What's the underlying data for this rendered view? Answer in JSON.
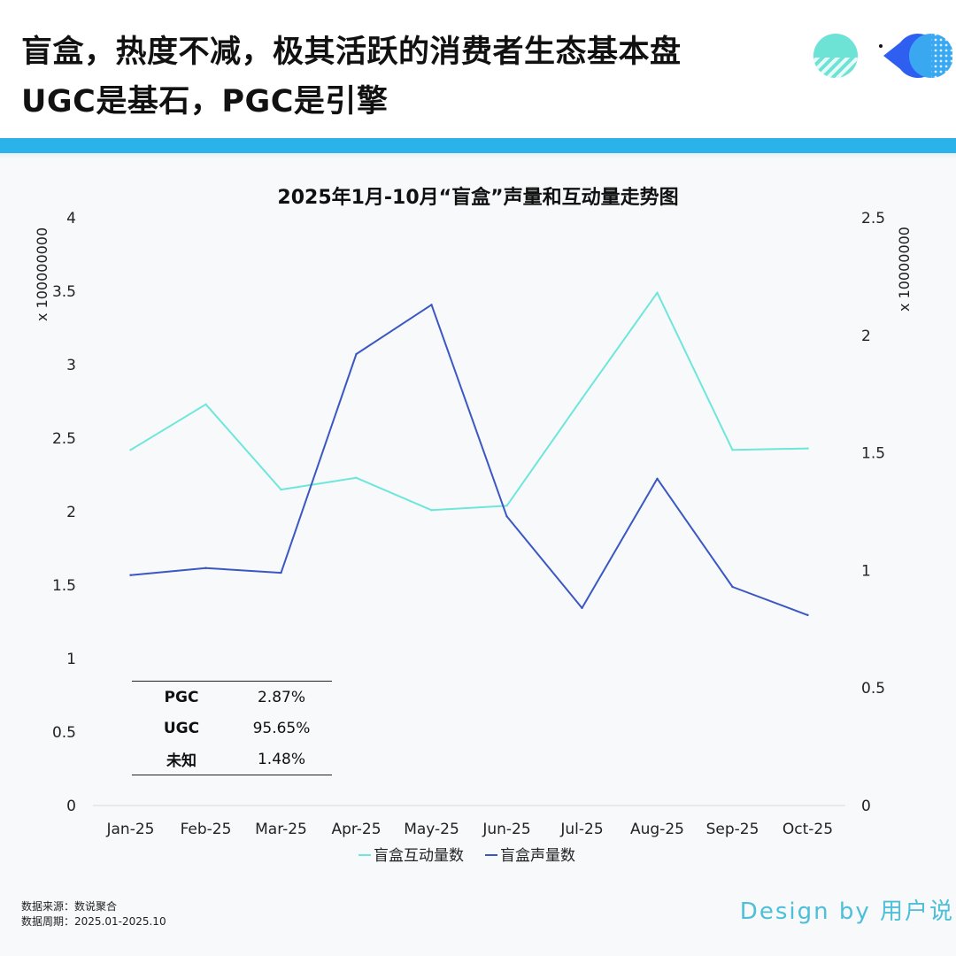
{
  "header": {
    "title_line1": "盲盒，热度不减，极其活跃的消费者生态基本盘",
    "title_line2": "UGC是基石，PGC是引擎"
  },
  "colors": {
    "band": "#29b3ea",
    "interaction_series": "#6ee6dc",
    "volume_series": "#3a57c4",
    "design_text": "#4dbfd9"
  },
  "logo": {
    "icons": [
      "striped-circle-icon",
      "pacman-icon",
      "dotted-circle-icon"
    ]
  },
  "chart_data": {
    "type": "line",
    "title": "2025年1月-10月“盲盒”声量和互动量走势图",
    "categories": [
      "Jan-25",
      "Feb-25",
      "Mar-25",
      "Apr-25",
      "May-25",
      "Jun-25",
      "Jul-25",
      "Aug-25",
      "Sep-25",
      "Oct-25"
    ],
    "y_left": {
      "unit": "x 100000000",
      "ylim": [
        0,
        4
      ],
      "ticks": [
        "0",
        "0.5",
        "1",
        "1.5",
        "2",
        "2.5",
        "3",
        "3.5",
        "4"
      ]
    },
    "y_right": {
      "unit": "x 10000000",
      "ylim": [
        0,
        2.5
      ],
      "ticks": [
        "0",
        "0.5",
        "1",
        "1.5",
        "2",
        "2.5"
      ]
    },
    "series": [
      {
        "name": "盲盒互动量数",
        "axis": "left",
        "color": "#6ee6dc",
        "values": [
          2.42,
          2.73,
          2.15,
          2.23,
          2.01,
          2.04,
          2.77,
          3.49,
          2.42,
          2.43
        ]
      },
      {
        "name": "盲盒声量数",
        "axis": "right",
        "color": "#3a57c4",
        "values": [
          0.98,
          1.01,
          0.99,
          1.92,
          2.13,
          1.23,
          0.84,
          1.39,
          0.93,
          0.81
        ]
      }
    ],
    "legend": "bottom",
    "grid": false
  },
  "stats": [
    {
      "label": "PGC",
      "value": "2.87%"
    },
    {
      "label": "UGC",
      "value": "95.65%"
    },
    {
      "label": "未知",
      "value": "1.48%"
    }
  ],
  "footer": {
    "source": "数据来源：数说聚合",
    "period": "数据周期：2025.01-2025.10",
    "design": "Design by 用户说"
  }
}
